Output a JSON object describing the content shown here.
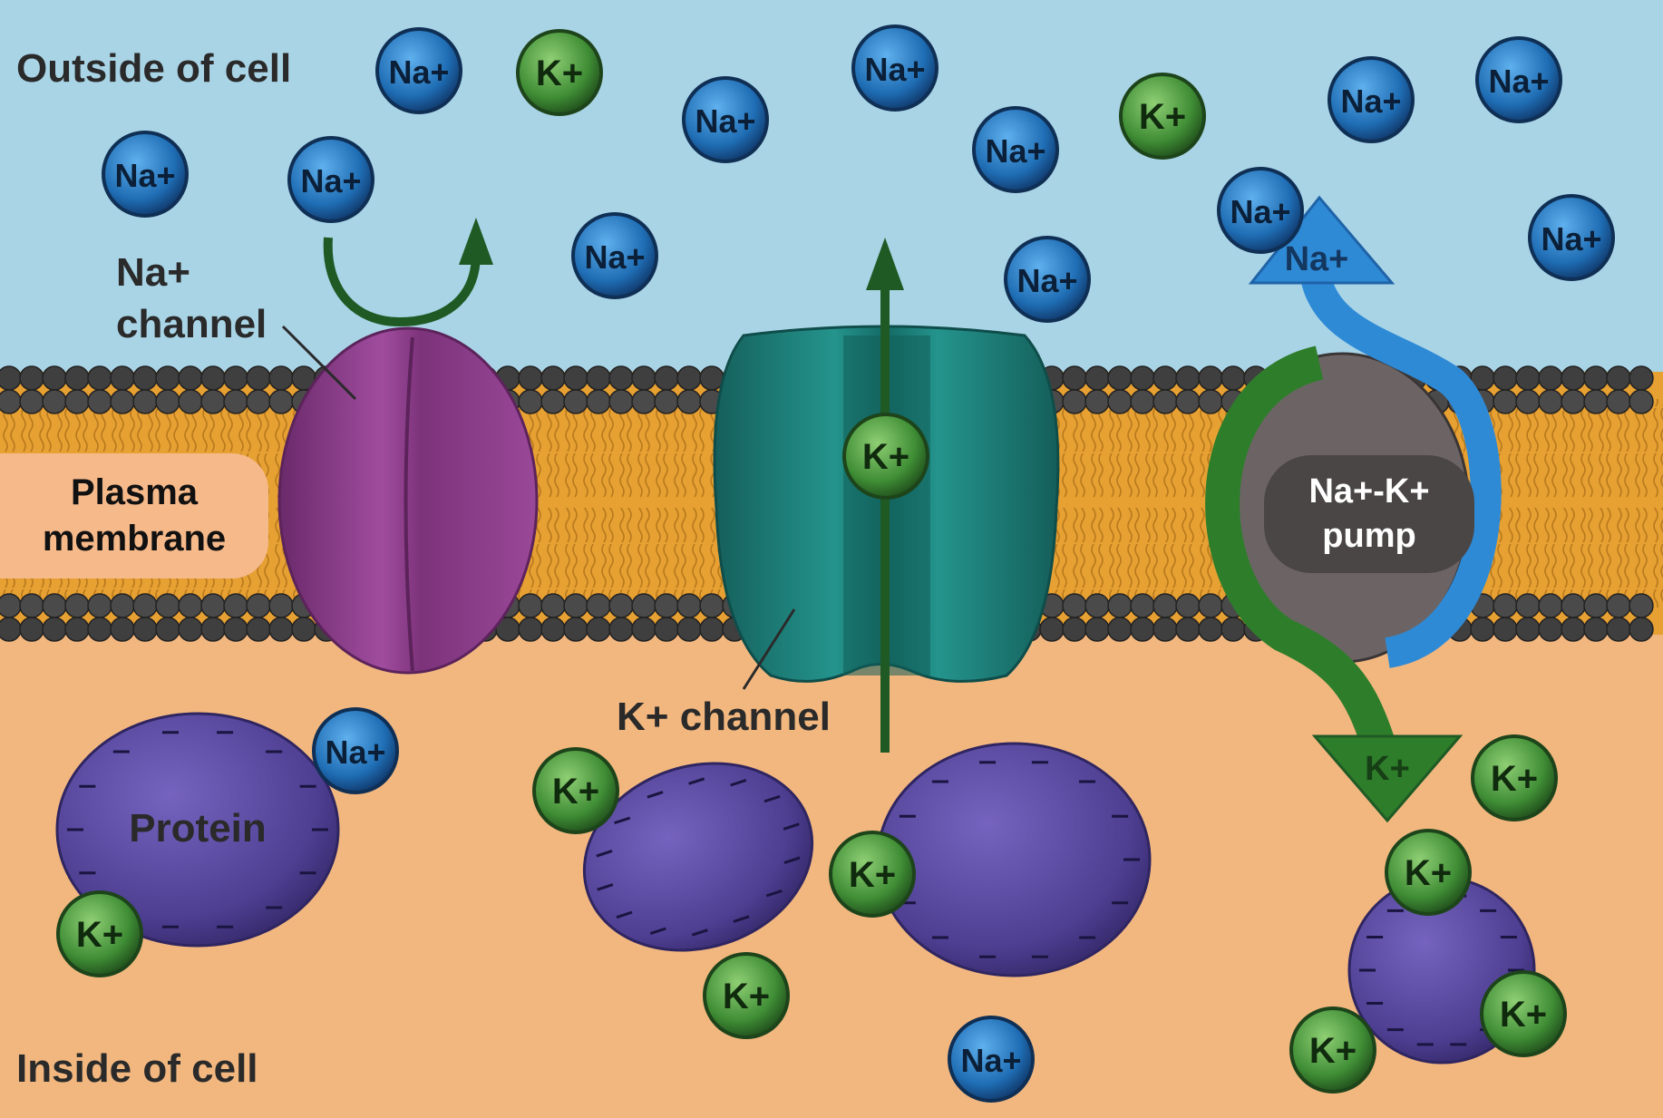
{
  "labels": {
    "outside": "Outside of cell",
    "inside": "Inside of cell",
    "na_channel_line1": "Na+",
    "na_channel_line2": "channel",
    "k_channel": "K+ channel",
    "protein": "Protein",
    "plasma_membrane_line1": "Plasma",
    "plasma_membrane_line2": "membrane",
    "pump_line1": "Na+-K+",
    "pump_line2": "pump",
    "pump_arrow_na": "Na+",
    "pump_arrow_k": "K+"
  },
  "ions": {
    "na": "Na+",
    "k": "K+"
  },
  "colors": {
    "outside": "#a9d4e6",
    "inside": "#f2b77f",
    "na_ion": "#1f6db4",
    "k_ion": "#3f8d35",
    "protein": "#5a4a9e",
    "na_channel": "#8f3f8d",
    "k_channel": "#1d7f7a",
    "pump_na_arrow": "#2f8ad6",
    "pump_k_arrow": "#2e7d2b",
    "membrane_tails": "#e7a032",
    "membrane_heads": "#3f3f3f"
  }
}
